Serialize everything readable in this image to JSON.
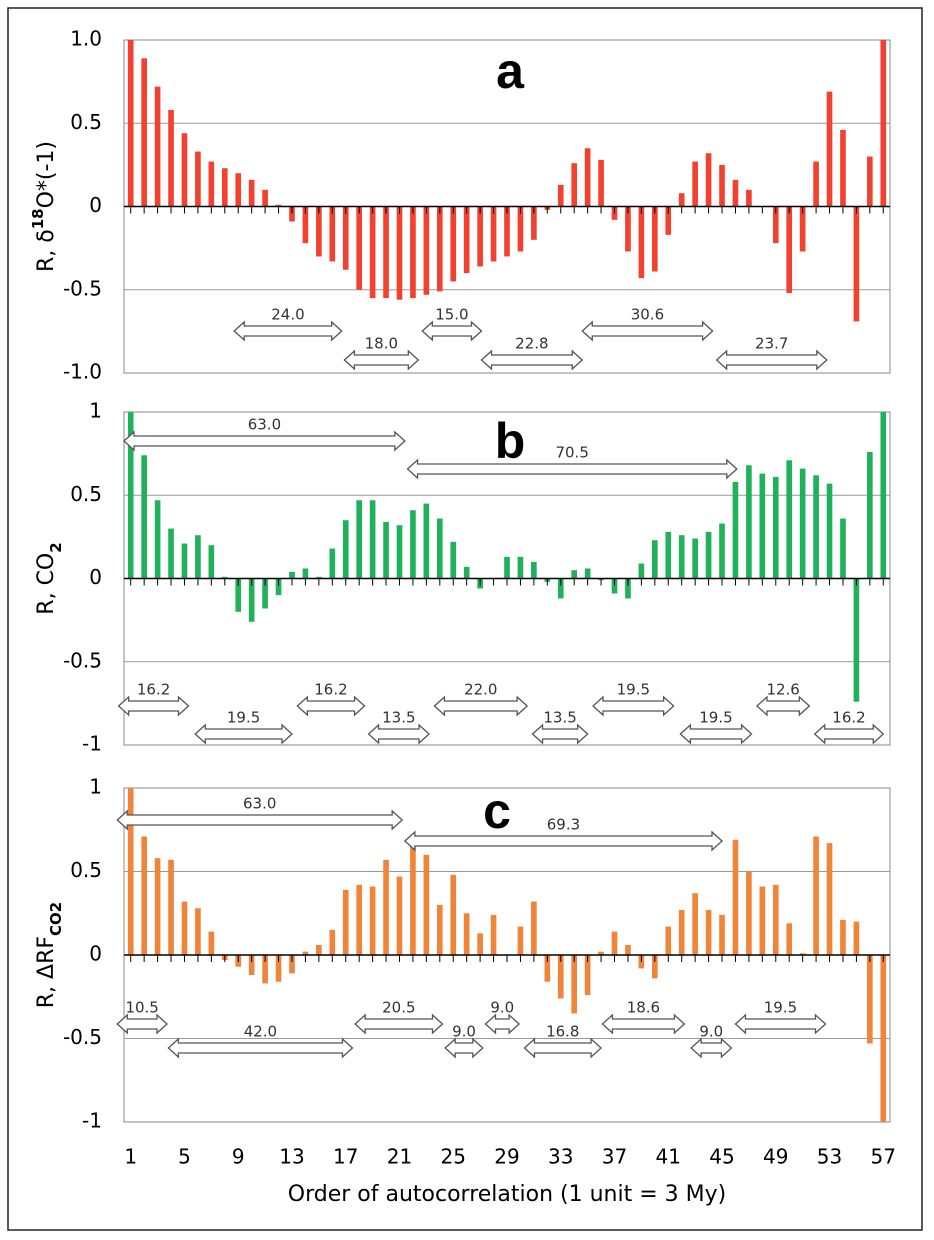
{
  "chart_data": [
    {
      "type": "bar",
      "letter": "a",
      "ylabel": [
        "R, δ",
        "18",
        "O*(-1)"
      ],
      "ylabel_style": [
        "normal",
        "super",
        "normal"
      ],
      "color": "#f2412f",
      "x": [
        1,
        2,
        3,
        4,
        5,
        6,
        7,
        8,
        9,
        10,
        11,
        12,
        13,
        14,
        15,
        16,
        17,
        18,
        19,
        20,
        21,
        22,
        23,
        24,
        25,
        26,
        27,
        28,
        29,
        30,
        31,
        32,
        33,
        34,
        35,
        36,
        37,
        38,
        39,
        40,
        41,
        42,
        43,
        44,
        45,
        46,
        47,
        48,
        49,
        50,
        51,
        52,
        53,
        54,
        55,
        56,
        57
      ],
      "values": [
        1.0,
        0.89,
        0.72,
        0.58,
        0.44,
        0.33,
        0.27,
        0.23,
        0.2,
        0.16,
        0.1,
        0.01,
        -0.09,
        -0.22,
        -0.3,
        -0.33,
        -0.38,
        -0.5,
        -0.55,
        -0.55,
        -0.56,
        -0.55,
        -0.53,
        -0.51,
        -0.45,
        -0.4,
        -0.36,
        -0.33,
        -0.3,
        -0.27,
        -0.2,
        -0.02,
        0.13,
        0.26,
        0.35,
        0.28,
        -0.08,
        -0.27,
        -0.43,
        -0.39,
        -0.17,
        0.08,
        0.27,
        0.32,
        0.25,
        0.16,
        0.1,
        0,
        -0.22,
        -0.52,
        -0.27,
        0.27,
        0.69,
        0.46,
        -0.69,
        0.3,
        1.0
      ],
      "xlim": [
        0.5,
        57.5
      ],
      "ylim": [
        -1,
        1
      ],
      "yticks": [
        {
          "value": 1,
          "label": "1.0"
        },
        0.5,
        0,
        -0.5,
        {
          "value": -1,
          "label": "-1.0"
        }
      ],
      "grid": true,
      "periods_top": [],
      "periods": [
        {
          "label": "24.0",
          "from": 8.7,
          "to": 16.7
        },
        {
          "label": "18.0",
          "from": 16.9,
          "to": 22.4
        },
        {
          "label": "15.0",
          "from": 22.7,
          "to": 27.1
        },
        {
          "label": "22.8",
          "from": 27.1,
          "to": 34.6
        },
        {
          "label": "30.6",
          "from": 34.6,
          "to": 44.3
        },
        {
          "label": "23.7",
          "from": 44.6,
          "to": 52.8
        }
      ]
    },
    {
      "type": "bar",
      "letter": "b",
      "ylabel": [
        "R, CO",
        "2"
      ],
      "ylabel_style": [
        "normal",
        "sub"
      ],
      "color": "#1fb25a",
      "x": [
        1,
        2,
        3,
        4,
        5,
        6,
        7,
        8,
        9,
        10,
        11,
        12,
        13,
        14,
        15,
        16,
        17,
        18,
        19,
        20,
        21,
        22,
        23,
        24,
        25,
        26,
        27,
        28,
        29,
        30,
        31,
        32,
        33,
        34,
        35,
        36,
        37,
        38,
        39,
        40,
        41,
        42,
        43,
        44,
        45,
        46,
        47,
        48,
        49,
        50,
        51,
        52,
        53,
        54,
        55,
        56,
        57
      ],
      "values": [
        1.0,
        0.74,
        0.47,
        0.3,
        0.21,
        0.26,
        0.2,
        0.01,
        -0.2,
        -0.26,
        -0.18,
        -0.1,
        0.04,
        0.06,
        0.01,
        0.18,
        0.35,
        0.47,
        0.47,
        0.34,
        0.32,
        0.41,
        0.45,
        0.36,
        0.22,
        0.07,
        -0.06,
        0,
        0.13,
        0.13,
        0.1,
        -0.02,
        -0.12,
        0.05,
        0.06,
        -0.01,
        -0.09,
        -0.12,
        0.09,
        0.23,
        0.28,
        0.26,
        0.24,
        0.28,
        0.33,
        0.58,
        0.68,
        0.63,
        0.61,
        0.71,
        0.66,
        0.62,
        0.57,
        0.36,
        -0.74,
        0.76,
        1.0
      ],
      "xlim": [
        0.5,
        57.5
      ],
      "ylim": [
        -1,
        1
      ],
      "yticks": [
        1,
        0.5,
        0,
        -0.5,
        -1
      ],
      "grid": true,
      "periods_top": [
        {
          "label": "63.0",
          "from": 0.5,
          "to": 21.4
        },
        {
          "label": "70.5",
          "from": 21.6,
          "to": 46.1
        }
      ],
      "periods": [
        {
          "label": "16.2",
          "from": 0.1,
          "to": 5.3
        },
        {
          "label": "19.5",
          "from": 5.8,
          "to": 13.0
        },
        {
          "label": "16.2",
          "from": 13.4,
          "to": 18.4
        },
        {
          "label": "13.5",
          "from": 18.7,
          "to": 23.2
        },
        {
          "label": "22.0",
          "from": 23.6,
          "to": 30.5
        },
        {
          "label": "13.5",
          "from": 30.9,
          "to": 35.0
        },
        {
          "label": "19.5",
          "from": 35.4,
          "to": 41.4
        },
        {
          "label": "19.5",
          "from": 41.9,
          "to": 47.2
        },
        {
          "label": "12.6",
          "from": 47.6,
          "to": 51.5
        },
        {
          "label": "16.2",
          "from": 51.9,
          "to": 57.0
        }
      ]
    },
    {
      "type": "bar",
      "letter": "c",
      "ylabel": [
        "R, ΔRF",
        "CO2"
      ],
      "ylabel_style": [
        "normal",
        "sub"
      ],
      "color": "#f0853a",
      "x": [
        1,
        2,
        3,
        4,
        5,
        6,
        7,
        8,
        9,
        10,
        11,
        12,
        13,
        14,
        15,
        16,
        17,
        18,
        19,
        20,
        21,
        22,
        23,
        24,
        25,
        26,
        27,
        28,
        29,
        30,
        31,
        32,
        33,
        34,
        35,
        36,
        37,
        38,
        39,
        40,
        41,
        42,
        43,
        44,
        45,
        46,
        47,
        48,
        49,
        50,
        51,
        52,
        53,
        54,
        55,
        56,
        57
      ],
      "values": [
        1.0,
        0.71,
        0.58,
        0.57,
        0.32,
        0.28,
        0.14,
        -0.03,
        -0.07,
        -0.12,
        -0.17,
        -0.16,
        -0.11,
        0.02,
        0.06,
        0.15,
        0.39,
        0.42,
        0.41,
        0.57,
        0.47,
        0.65,
        0.6,
        0.3,
        0.48,
        0.25,
        0.13,
        0.24,
        0,
        0.17,
        0.32,
        -0.16,
        -0.26,
        -0.35,
        -0.24,
        0.02,
        0.14,
        0.06,
        -0.08,
        -0.14,
        0.17,
        0.27,
        0.37,
        0.27,
        0.24,
        0.69,
        0.5,
        0.41,
        0.42,
        0.19,
        0.01,
        0.71,
        0.67,
        0.21,
        0.2,
        -0.53,
        -1.0
      ],
      "xlim": [
        0.5,
        57.5
      ],
      "ylim": [
        -1,
        1
      ],
      "yticks": [
        1,
        0.5,
        0,
        -0.5,
        -1
      ],
      "grid": true,
      "xticks": [
        1,
        5,
        9,
        13,
        17,
        21,
        25,
        29,
        33,
        37,
        41,
        45,
        49,
        53,
        57
      ],
      "xlabel": "Order of autocorrelation (1 unit = 3 My)",
      "periods_top": [
        {
          "label": "63.0",
          "from": 0.0,
          "to": 21.2
        },
        {
          "label": "69.3",
          "from": 21.4,
          "to": 45.0
        }
      ],
      "periods": [
        {
          "label": "10.5",
          "from": 0.0,
          "to": 3.7
        },
        {
          "label": "42.0",
          "from": 3.8,
          "to": 17.5
        },
        {
          "label": "20.5",
          "from": 17.7,
          "to": 24.2
        },
        {
          "label": "9.0",
          "from": 24.4,
          "to": 27.2
        },
        {
          "label": "9.0",
          "from": 27.4,
          "to": 29.9
        },
        {
          "label": "16.8",
          "from": 30.3,
          "to": 36.0
        },
        {
          "label": "18.6",
          "from": 36.1,
          "to": 42.2
        },
        {
          "label": "9.0",
          "from": 42.7,
          "to": 45.7
        },
        {
          "label": "19.5",
          "from": 46.0,
          "to": 52.7
        }
      ]
    }
  ]
}
